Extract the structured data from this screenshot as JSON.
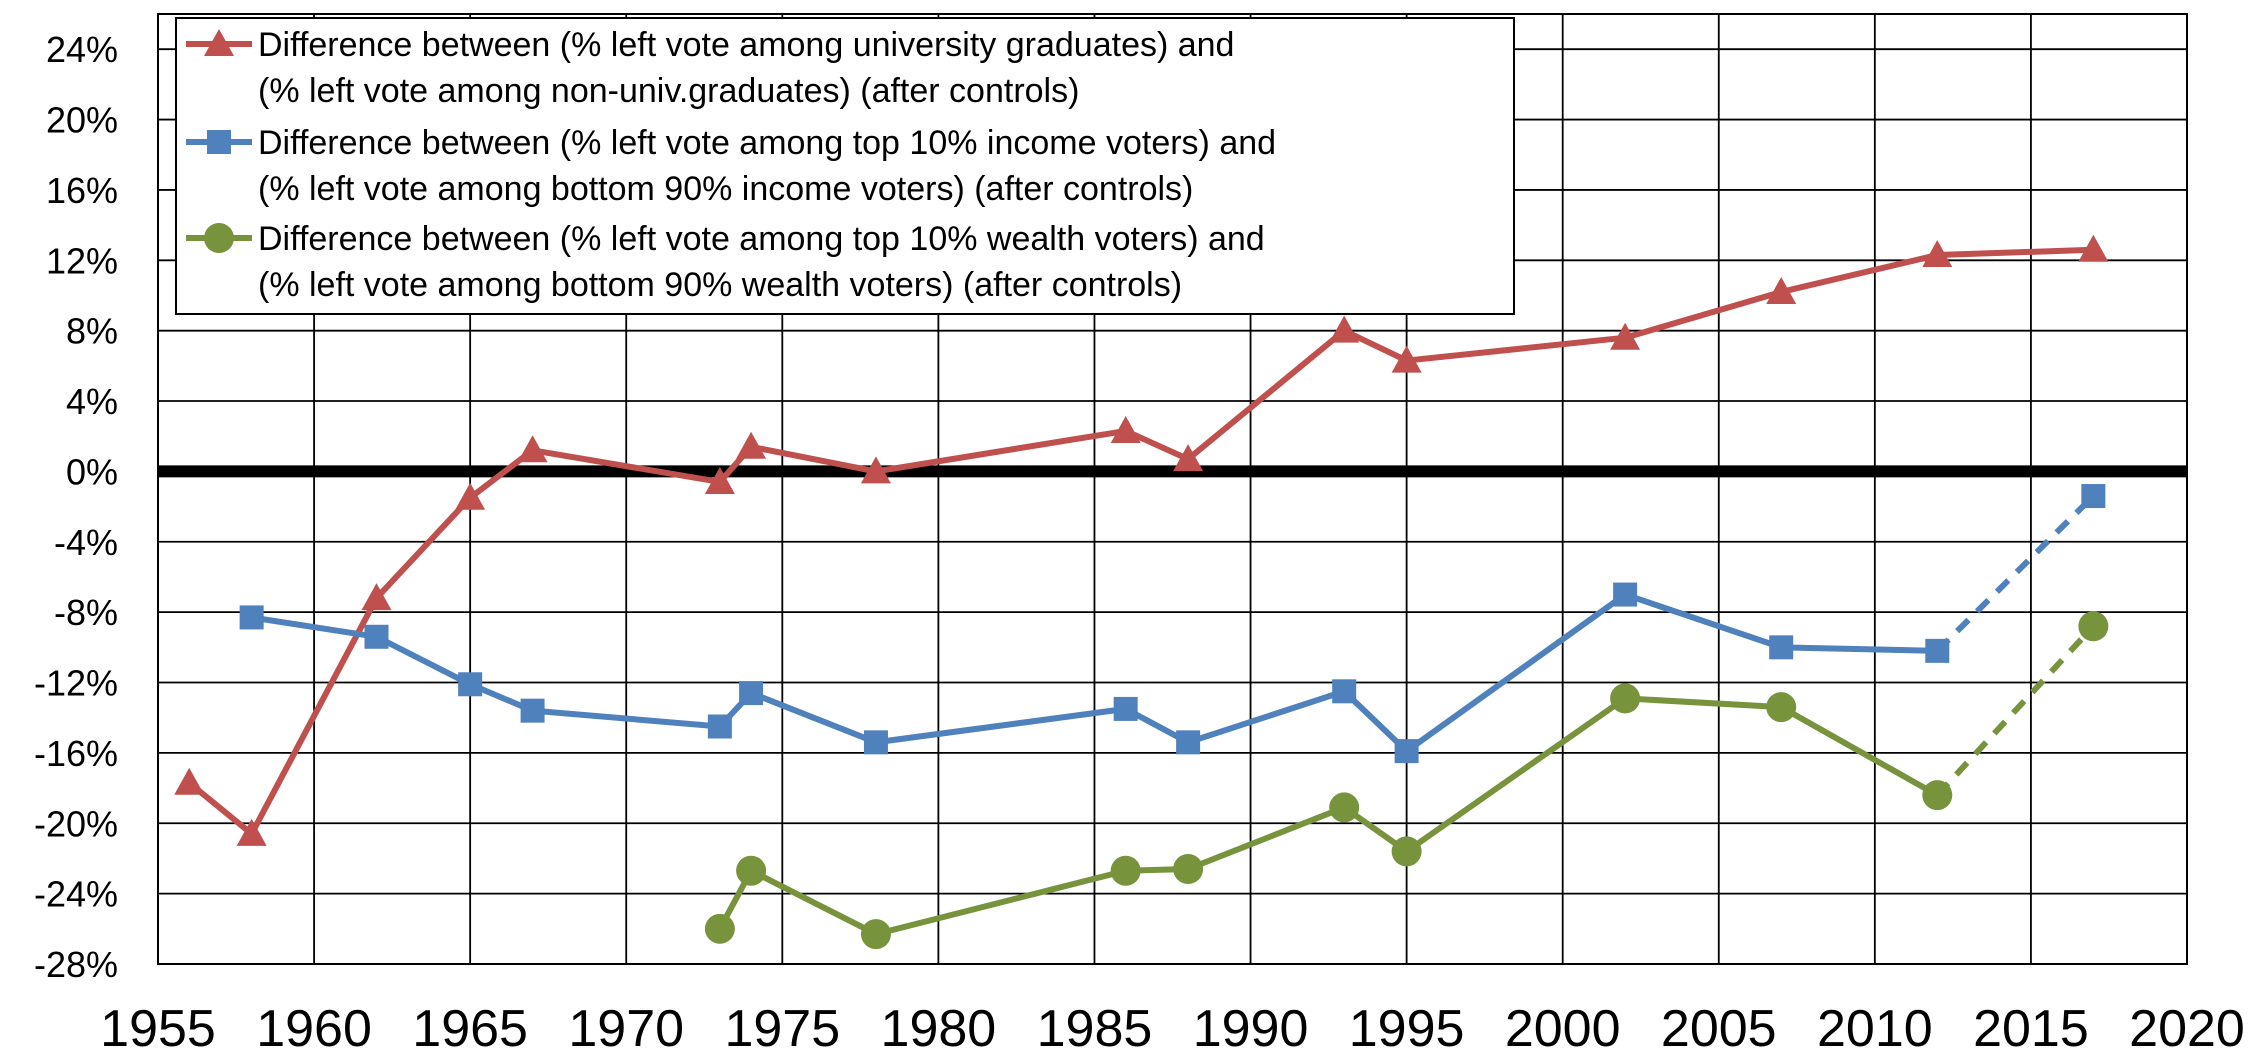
{
  "chart_data": {
    "type": "line",
    "title": "",
    "xlabel": "",
    "ylabel": "",
    "xlim": [
      1955,
      2020
    ],
    "ylim": [
      -28,
      26
    ],
    "x_ticks": [
      "1955",
      "1960",
      "1965",
      "1970",
      "1975",
      "1980",
      "1985",
      "1990",
      "1995",
      "2000",
      "2005",
      "2010",
      "2015",
      "2020"
    ],
    "y_ticks": [
      "24%",
      "20%",
      "16%",
      "12%",
      "8%",
      "4%",
      "0%",
      "-4%",
      "-8%",
      "-12%",
      "-16%",
      "-20%",
      "-24%",
      "-28%"
    ],
    "grid": true,
    "legend_position": "top-left",
    "series": [
      {
        "name_lines": [
          "Difference between (% left vote among university graduates) and",
          "(% left vote among non-univ.graduates) (after controls)"
        ],
        "color": "#c0504d",
        "marker": "triangle",
        "points": [
          {
            "x": 1956,
            "y": -17.7
          },
          {
            "x": 1958,
            "y": -20.6
          },
          {
            "x": 1962,
            "y": -7.2
          },
          {
            "x": 1965,
            "y": -1.5
          },
          {
            "x": 1967,
            "y": 1.2
          },
          {
            "x": 1973,
            "y": -0.6
          },
          {
            "x": 1974,
            "y": 1.4
          },
          {
            "x": 1978,
            "y": 0.0
          },
          {
            "x": 1986,
            "y": 2.3
          },
          {
            "x": 1988,
            "y": 0.7
          },
          {
            "x": 1993,
            "y": 8.0
          },
          {
            "x": 1995,
            "y": 6.3
          },
          {
            "x": 2002,
            "y": 7.6
          },
          {
            "x": 2007,
            "y": 10.2
          },
          {
            "x": 2012,
            "y": 12.3
          },
          {
            "x": 2017,
            "y": 12.6
          }
        ],
        "dashed_from_x": null
      },
      {
        "name_lines": [
          "Difference between (% left vote among top 10% income voters) and",
          "(% left vote among bottom 90% income voters) (after controls)"
        ],
        "color": "#4f81bd",
        "marker": "square",
        "points": [
          {
            "x": 1958,
            "y": -8.3
          },
          {
            "x": 1962,
            "y": -9.4
          },
          {
            "x": 1965,
            "y": -12.1
          },
          {
            "x": 1967,
            "y": -13.6
          },
          {
            "x": 1973,
            "y": -14.5
          },
          {
            "x": 1974,
            "y": -12.6
          },
          {
            "x": 1978,
            "y": -15.4
          },
          {
            "x": 1986,
            "y": -13.5
          },
          {
            "x": 1988,
            "y": -15.4
          },
          {
            "x": 1993,
            "y": -12.5
          },
          {
            "x": 1995,
            "y": -15.9
          },
          {
            "x": 2002,
            "y": -7.0
          },
          {
            "x": 2007,
            "y": -10.0
          },
          {
            "x": 2012,
            "y": -10.2
          },
          {
            "x": 2017,
            "y": -1.4
          }
        ],
        "dashed_from_x": 2012
      },
      {
        "name_lines": [
          "Difference between (% left vote among top 10% wealth voters) and",
          "(% left vote among bottom 90% wealth voters) (after controls)"
        ],
        "color": "#77933c",
        "marker": "circle",
        "points": [
          {
            "x": 1973,
            "y": -26.0
          },
          {
            "x": 1974,
            "y": -22.7
          },
          {
            "x": 1978,
            "y": -26.3
          },
          {
            "x": 1986,
            "y": -22.7
          },
          {
            "x": 1988,
            "y": -22.6
          },
          {
            "x": 1993,
            "y": -19.1
          },
          {
            "x": 1995,
            "y": -21.6
          },
          {
            "x": 2002,
            "y": -12.9
          },
          {
            "x": 2007,
            "y": -13.4
          },
          {
            "x": 2012,
            "y": -18.4
          },
          {
            "x": 2017,
            "y": -8.8
          }
        ],
        "dashed_from_x": 2012
      }
    ]
  }
}
